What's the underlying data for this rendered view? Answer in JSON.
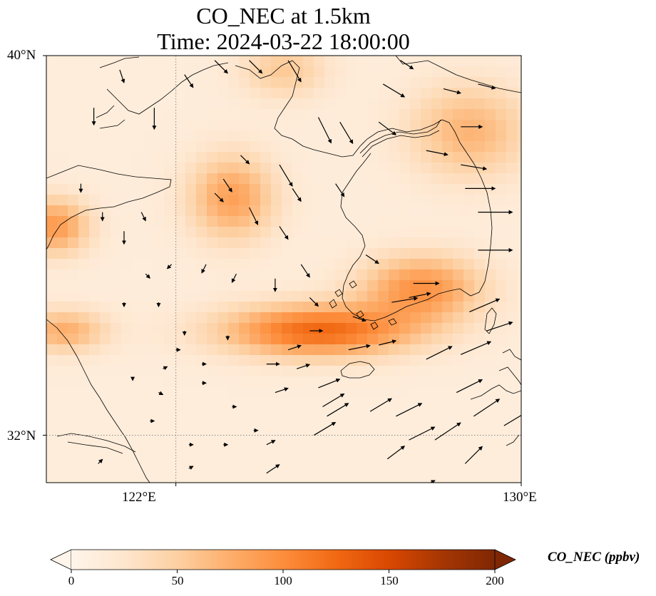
{
  "title": {
    "line1": "CO_NEC at 1.5km",
    "line2": "Time: 2024-03-22 18:00:00"
  },
  "map": {
    "lon_range": [
      119,
      130
    ],
    "lat_range": [
      31,
      40
    ],
    "lon_ticks": [
      {
        "value": 122,
        "label": "122°E"
      },
      {
        "value": 130,
        "label": "130°E"
      }
    ],
    "lat_ticks": [
      {
        "value": 40,
        "label": "40°N"
      },
      {
        "value": 32,
        "label": "32°N"
      }
    ],
    "gridlines": {
      "lon": 122,
      "lat": 32,
      "style": "dotted"
    },
    "field_hotspots": [
      {
        "lon": 125.3,
        "lat": 34.2,
        "value": 125,
        "spread_lon": 2.2,
        "spread_lat": 0.55
      },
      {
        "lon": 127.7,
        "lat": 35.1,
        "value": 95,
        "spread_lon": 1.4,
        "spread_lat": 0.7
      },
      {
        "lon": 123.3,
        "lat": 37.0,
        "value": 85,
        "spread_lon": 1.0,
        "spread_lat": 0.9
      },
      {
        "lon": 119.2,
        "lat": 36.4,
        "value": 90,
        "spread_lon": 0.8,
        "spread_lat": 0.6
      },
      {
        "lon": 119.4,
        "lat": 34.2,
        "value": 75,
        "spread_lon": 1.0,
        "spread_lat": 0.45
      },
      {
        "lon": 128.8,
        "lat": 38.4,
        "value": 70,
        "spread_lon": 1.4,
        "spread_lat": 1.0
      },
      {
        "lon": 124.5,
        "lat": 39.7,
        "value": 55,
        "spread_lon": 1.0,
        "spread_lat": 0.6
      }
    ],
    "background_value": 14,
    "wind_vectors": [
      [
        120.7,
        39.7,
        0.1,
        -0.3
      ],
      [
        120.1,
        38.9,
        0,
        -0.4
      ],
      [
        121.5,
        38.9,
        0,
        -0.5
      ],
      [
        122.2,
        39.6,
        0.2,
        -0.3
      ],
      [
        122.9,
        39.9,
        0.3,
        -0.3
      ],
      [
        123.7,
        39.9,
        0.3,
        -0.3
      ],
      [
        124.6,
        39.9,
        0.3,
        -0.5
      ],
      [
        125.3,
        38.7,
        0.3,
        -0.6
      ],
      [
        125.8,
        38.6,
        0.3,
        -0.5
      ],
      [
        126.7,
        38.6,
        0.4,
        -0.3
      ],
      [
        126.8,
        39.4,
        0.5,
        -0.3
      ],
      [
        127.2,
        39.9,
        0.3,
        -0.2
      ],
      [
        128.2,
        39.3,
        0.4,
        -0.1
      ],
      [
        129,
        39.4,
        0.4,
        -0.1
      ],
      [
        128.6,
        38.5,
        0.5,
        0
      ],
      [
        127.8,
        38.0,
        0.5,
        -0.1
      ],
      [
        128.6,
        37.7,
        0.6,
        -0.1
      ],
      [
        128.7,
        37.2,
        0.7,
        0
      ],
      [
        129,
        36.7,
        0.8,
        0
      ],
      [
        129,
        35.9,
        0.8,
        0
      ],
      [
        126.4,
        35.8,
        0.3,
        -0.2
      ],
      [
        127.5,
        35.2,
        0.6,
        0
      ],
      [
        127.0,
        34.8,
        0.6,
        0.1
      ],
      [
        128.8,
        34.6,
        0.7,
        0.3
      ],
      [
        129.2,
        34.2,
        0.6,
        0.2
      ],
      [
        128.6,
        33.7,
        0.7,
        0.3
      ],
      [
        127.8,
        33.6,
        0.6,
        0.3
      ],
      [
        126.7,
        33.9,
        0.4,
        0.1
      ],
      [
        125.1,
        34.2,
        0.3,
        0
      ],
      [
        126.1,
        34.5,
        0.3,
        -0.1
      ],
      [
        125.1,
        34.9,
        0.2,
        -0.2
      ],
      [
        124.9,
        35.6,
        0.2,
        -0.3
      ],
      [
        124.4,
        36.4,
        0.2,
        -0.3
      ],
      [
        123.7,
        36.8,
        0.2,
        -0.4
      ],
      [
        124.7,
        37.2,
        0.2,
        -0.3
      ],
      [
        125.7,
        37.3,
        0.2,
        -0.3
      ],
      [
        124.4,
        37.7,
        0.3,
        -0.5
      ],
      [
        123.1,
        37.4,
        0.2,
        -0.3
      ],
      [
        123.5,
        37.9,
        0.2,
        -0.2
      ],
      [
        122.9,
        37.1,
        0.2,
        -0.2
      ],
      [
        121.2,
        36.7,
        0.1,
        -0.2
      ],
      [
        120.8,
        36.3,
        0,
        -0.3
      ],
      [
        120.3,
        36.7,
        0,
        -0.2
      ],
      [
        119.8,
        37.3,
        0,
        -0.2
      ],
      [
        121.3,
        35.4,
        0.1,
        -0.1
      ],
      [
        121.9,
        35.6,
        -0.1,
        -0.1
      ],
      [
        122.7,
        35.6,
        -0.1,
        -0.2
      ],
      [
        123.4,
        35.4,
        -0.1,
        -0.2
      ],
      [
        124.3,
        35.3,
        0,
        -0.3
      ],
      [
        120.8,
        34.8,
        0,
        -0.1
      ],
      [
        121.6,
        34.8,
        0,
        -0.1
      ],
      [
        122.2,
        34.2,
        0,
        -0.1
      ],
      [
        123.2,
        34.1,
        0,
        -0.1
      ],
      [
        124.1,
        33.5,
        0.3,
        0
      ],
      [
        124.8,
        33.4,
        0.3,
        0.1
      ],
      [
        124.6,
        33.8,
        0.3,
        0.1
      ],
      [
        124.3,
        32.9,
        0.3,
        0.1
      ],
      [
        125.2,
        32.0,
        0.5,
        0.3
      ],
      [
        125.5,
        32.4,
        0.5,
        0.3
      ],
      [
        125.4,
        32.6,
        0.5,
        0.3
      ],
      [
        126.5,
        32.5,
        0.5,
        0.3
      ],
      [
        127.1,
        32.4,
        0.6,
        0.3
      ],
      [
        127.4,
        31.9,
        0.6,
        0.3
      ],
      [
        128.0,
        31.9,
        0.6,
        0.4
      ],
      [
        128.5,
        32.9,
        0.6,
        0.3
      ],
      [
        128.9,
        32.4,
        0.6,
        0.4
      ],
      [
        129.6,
        32.2,
        0.5,
        0.3
      ],
      [
        128.7,
        31.4,
        0.4,
        0.4
      ],
      [
        126.9,
        31.5,
        0.4,
        0.3
      ],
      [
        127.4,
        34.9,
        0.5,
        0.1
      ],
      [
        126.0,
        33.8,
        0.5,
        0.1
      ],
      [
        125.3,
        33.0,
        0.5,
        0.2
      ],
      [
        121.0,
        33.2,
        0,
        -0.05
      ],
      [
        121.6,
        32.9,
        0.1,
        -0.05
      ],
      [
        121.4,
        32.3,
        0.1,
        0
      ],
      [
        122.6,
        33.1,
        0.1,
        0
      ],
      [
        123.3,
        32.6,
        0.1,
        0
      ],
      [
        123.8,
        32.1,
        0.1,
        0
      ],
      [
        124.1,
        31.8,
        0.2,
        0.1
      ],
      [
        122.3,
        31.8,
        0.1,
        0
      ],
      [
        123.1,
        31.8,
        0.1,
        0
      ],
      [
        122.3,
        31.3,
        0.1,
        0.05
      ],
      [
        124.1,
        31.2,
        0.3,
        0.2
      ],
      [
        127.9,
        31.0,
        0.1,
        0.05
      ],
      [
        122.0,
        33.8,
        0.1,
        0
      ],
      [
        122.6,
        33.5,
        0.1,
        0
      ],
      [
        121.7,
        33.4,
        0.1,
        0.05
      ],
      [
        120.2,
        31.4,
        0.1,
        0.1
      ]
    ]
  },
  "colorbar": {
    "title": "CO_NEC (ppbv)",
    "min": 0,
    "max": 200,
    "ticks": [
      0,
      50,
      100,
      150,
      200
    ],
    "tick_labels": [
      "0",
      "50",
      "100",
      "150",
      "200"
    ],
    "colormap": [
      "#fff5eb",
      "#fee6ce",
      "#fdd0a2",
      "#fdae6b",
      "#fd8d3c",
      "#f16913",
      "#d94801",
      "#a63603",
      "#7f2704"
    ],
    "extend": "both"
  }
}
